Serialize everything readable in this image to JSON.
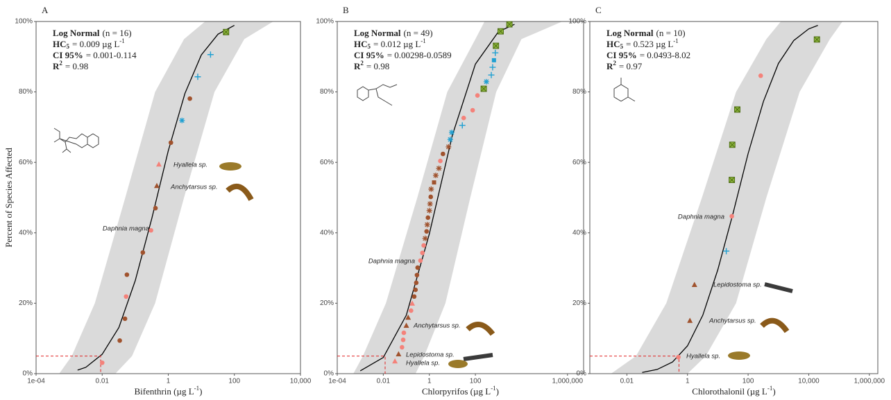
{
  "chart_data": [
    {
      "type": "scatter",
      "panel_label": "A",
      "ylabel": "Percent of Species Affected",
      "xlabel": "Bifenthrin (µg L",
      "xlabel_sup": "-1",
      "xlabel_end": ")",
      "log_x": true,
      "xlim": [
        0.0001,
        10000
      ],
      "xticks": [
        {
          "value": 0.0001,
          "label": "1e-04"
        },
        0.01,
        1,
        100,
        {
          "value": 10000,
          "label": "10,000"
        }
      ],
      "ylim": [
        0,
        100
      ],
      "yticks": [
        {
          "value": 0,
          "label": "0%"
        },
        {
          "value": 20,
          "label": "20%"
        },
        {
          "value": 40,
          "label": "40%"
        },
        {
          "value": 60,
          "label": "60%"
        },
        {
          "value": 80,
          "label": "80%"
        },
        {
          "value": 100,
          "label": "100%"
        }
      ],
      "stats": [
        {
          "label": "Log Normal",
          "value": "(n = 16)"
        },
        {
          "label": "HC",
          "label_sub": "5",
          "value": "= 0.009 µg L",
          "value_sup": "-1"
        },
        {
          "label": "CI 95%",
          "value": "= 0.001-0.114"
        },
        {
          "label": "R",
          "label_sup": "2",
          "value": "= 0.98"
        }
      ],
      "hc5": {
        "x": 0.009,
        "y": 5
      },
      "fit": {
        "x": [
          0.0018,
          0.0032,
          0.01,
          0.032,
          0.1,
          0.32,
          1,
          3.2,
          10,
          32,
          100
        ],
        "values": [
          1.0,
          1.8,
          5.5,
          13.1,
          26.4,
          44.2,
          63.3,
          79.6,
          90.5,
          96.4,
          98.9
        ]
      },
      "ci": {
        "values": [
          0,
          5,
          20,
          50,
          80,
          95,
          100
        ],
        "lower": [
          0.0005,
          0.0012,
          0.006,
          0.05,
          0.4,
          3,
          13
        ],
        "upper": [
          0.025,
          0.08,
          0.4,
          3,
          25,
          200,
          1500
        ]
      },
      "series": [
        {
          "color": "#f4827a",
          "marker": "circle",
          "x": [
            0.01,
            0.053,
            0.3
          ],
          "values": [
            3.1,
            21.9,
            40.7
          ]
        },
        {
          "color": "#a0522d",
          "marker": "circle",
          "x": [
            0.034,
            0.049,
            0.056,
            0.17,
            0.41,
            1.2,
            4.5
          ],
          "values": [
            9.4,
            15.6,
            28.1,
            34.4,
            47,
            65.6,
            78.1
          ]
        },
        {
          "color": "#a0522d",
          "marker": "triangle",
          "x": [
            0.45
          ],
          "values": [
            53.3
          ]
        },
        {
          "color": "#f4827a",
          "marker": "triangle",
          "x": [
            0.52
          ],
          "values": [
            59.4
          ]
        },
        {
          "color": "#1fa0d2",
          "marker": "asterisk",
          "x": [
            2.6
          ],
          "values": [
            71.9
          ]
        },
        {
          "color": "#1fa0d2",
          "marker": "plus",
          "x": [
            7.8,
            19
          ],
          "values": [
            84.3,
            90.6
          ]
        },
        {
          "color": "#8cb43c",
          "marker": "boxed-x",
          "x": [
            56
          ],
          "values": [
            97
          ]
        }
      ],
      "annotations": [
        "Hyallela sp.",
        "Anchytarsus sp.",
        "Daphnia magna"
      ]
    },
    {
      "type": "scatter",
      "panel_label": "B",
      "xlabel": "Chlorpyrifos (µg L",
      "xlabel_sup": "-1",
      "xlabel_end": ")",
      "log_x": true,
      "xlim": [
        0.0001,
        5000000
      ],
      "xticks": [
        {
          "value": 0.0001,
          "label": "1e-04"
        },
        0.01,
        1,
        100,
        {
          "value": 1000000,
          "label": "1,000,000"
        }
      ],
      "ylim": [
        0,
        100
      ],
      "yticks": [
        {
          "value": 0,
          "label": "0%"
        },
        {
          "value": 20,
          "label": "20%"
        },
        {
          "value": 40,
          "label": "40%"
        },
        {
          "value": 60,
          "label": "60%"
        },
        {
          "value": 80,
          "label": "80%"
        },
        {
          "value": 100,
          "label": "100%"
        }
      ],
      "stats": [
        {
          "label": "Log Normal",
          "value": "(n = 49)"
        },
        {
          "label": "HC",
          "label_sub": "5",
          "value": "= 0.012 µg L",
          "value_sup": "-1"
        },
        {
          "label": "CI 95%",
          "value": "= 0.00298-0.0589"
        },
        {
          "label": "R",
          "label_sup": "2",
          "value": "= 0.98"
        }
      ],
      "hc5": {
        "x": 0.012,
        "y": 5
      },
      "fit": {
        "x": [
          0.001,
          0.01,
          0.1,
          1,
          10,
          100,
          1000,
          5000
        ],
        "values": [
          0.8,
          4.6,
          16.6,
          39.7,
          67.7,
          87.9,
          97.1,
          99.2
        ]
      },
      "ci": {
        "values": [
          0,
          5,
          20,
          50,
          80,
          95,
          100
        ],
        "lower": [
          0.0005,
          0.0013,
          0.013,
          0.3,
          6,
          100,
          250
        ],
        "upper": [
          0.25,
          0.6,
          5,
          60,
          800,
          10000,
          600000
        ]
      },
      "series": [
        {
          "color": "#f4827a",
          "marker": "circle",
          "x": [
            0.065,
            0.073,
            0.078,
            0.16,
            0.41,
            0.5,
            0.57,
            3.0,
            31,
            76,
            123
          ],
          "values": [
            7.5,
            9.6,
            11.6,
            17.9,
            32.1,
            34.3,
            36.4,
            60.4,
            72.6,
            74.8,
            79
          ]
        },
        {
          "color": "#f4827a",
          "marker": "triangle",
          "x": [
            0.032,
            0.18
          ],
          "values": [
            3.5,
            19.9
          ]
        },
        {
          "color": "#a0522d",
          "marker": "triangle",
          "x": [
            0.046,
            0.1,
            0.12
          ],
          "values": [
            5.5,
            13.6,
            15.9
          ]
        },
        {
          "color": "#a0522d",
          "marker": "circle",
          "x": [
            0.22,
            0.25,
            0.27,
            0.29,
            0.31,
            0.76,
            0.87,
            1.15,
            3.9
          ],
          "values": [
            21.9,
            23.8,
            25.8,
            28,
            30.1,
            40.4,
            44.3,
            50.2,
            62.4
          ]
        },
        {
          "color": "#a0522d",
          "marker": "asterisk",
          "x": [
            0.66,
            0.81,
            1.0,
            1.07,
            1.2,
            1.9,
            2.6,
            6.8
          ],
          "values": [
            38.4,
            42.3,
            46.3,
            48.2,
            52.4,
            56.3,
            58.3,
            64.4
          ]
        },
        {
          "color": "#a0522d",
          "marker": "square",
          "x": [
            1.6
          ],
          "values": [
            54.3
          ]
        },
        {
          "color": "#1fa0d2",
          "marker": "asterisk",
          "x": [
            8.1,
            9.4,
            300
          ],
          "values": [
            66.5,
            68.5,
            82.9
          ]
        },
        {
          "color": "#1fa0d2",
          "marker": "plus",
          "x": [
            27,
            490,
            560,
            730
          ],
          "values": [
            70.5,
            84.8,
            87,
            91.1
          ]
        },
        {
          "color": "#1fa0d2",
          "marker": "square",
          "x": [
            640
          ],
          "values": [
            89
          ]
        },
        {
          "color": "#8cb43c",
          "marker": "boxed-x",
          "x": [
            230,
            780,
            1250,
            3000
          ],
          "values": [
            80.9,
            93.1,
            97.2,
            99.2
          ]
        }
      ],
      "annotations": [
        "Daphnia magna",
        "Anchytarsus sp.",
        "Lepidostoma sp.",
        "Hyallela sp."
      ]
    },
    {
      "type": "scatter",
      "panel_label": "C",
      "xlabel": "Chlorothalonil (µg L",
      "xlabel_sup": "-1",
      "xlabel_end": ")",
      "log_x": true,
      "xlim": [
        0.0006,
        1900000
      ],
      "xticks": [
        0.01,
        1,
        100,
        {
          "value": 10000,
          "label": "10,000"
        },
        {
          "value": 1000000,
          "label": "1,000,000"
        }
      ],
      "ylim": [
        0,
        100
      ],
      "yticks": [
        {
          "value": 0,
          "label": "0%"
        },
        {
          "value": 20,
          "label": "20%"
        },
        {
          "value": 40,
          "label": "40%"
        },
        {
          "value": 60,
          "label": "60%"
        },
        {
          "value": 80,
          "label": "80%"
        },
        {
          "value": 100,
          "label": "100%"
        }
      ],
      "stats": [
        {
          "label": "Log Normal",
          "value": "(n = 10)"
        },
        {
          "label": "HC",
          "label_sub": "5",
          "value": "= 0.523 µg L",
          "value_sup": "-1"
        },
        {
          "label": "CI 95%",
          "value": "= 0.0493-8.02"
        },
        {
          "label": "R",
          "label_sup": "2",
          "value": "= 0.97"
        }
      ],
      "hc5": {
        "x": 0.523,
        "y": 5
      },
      "fit": {
        "x": [
          0.032,
          0.1,
          0.32,
          1,
          3.2,
          10,
          32,
          100,
          320,
          1000,
          3200,
          10000,
          20000
        ],
        "values": [
          0.35,
          1.2,
          3.3,
          7.9,
          16.6,
          29.5,
          45.6,
          62.5,
          77.3,
          88.1,
          94.6,
          97.9,
          98.9
        ]
      },
      "ci": {
        "values": [
          0,
          5,
          20,
          50,
          80,
          95,
          100
        ],
        "lower": [
          0.003,
          0.02,
          0.2,
          3,
          40,
          400,
          1200
        ],
        "upper": [
          1,
          4,
          40,
          400,
          5000,
          50000,
          130000
        ]
      },
      "series": [
        {
          "color": "#f4827a",
          "marker": "circle",
          "x": [
            0.5,
            29,
            260
          ],
          "values": [
            4.7,
            44.7,
            84.6
          ]
        },
        {
          "color": "#a0522d",
          "marker": "triangle",
          "x": [
            1.2,
            1.7
          ],
          "values": [
            15,
            25.2
          ]
        },
        {
          "color": "#1fa0d2",
          "marker": "plus",
          "x": [
            19
          ],
          "values": [
            34.8
          ]
        },
        {
          "color": "#8cb43c",
          "marker": "boxed-x",
          "x": [
            29,
            30,
            44,
            18600
          ],
          "values": [
            55,
            65,
            75,
            94.9
          ]
        }
      ],
      "annotations": [
        "Daphnia magna",
        "Lepidostoma sp.",
        "Anchytarsus sp.",
        "Hyallela sp."
      ]
    }
  ]
}
